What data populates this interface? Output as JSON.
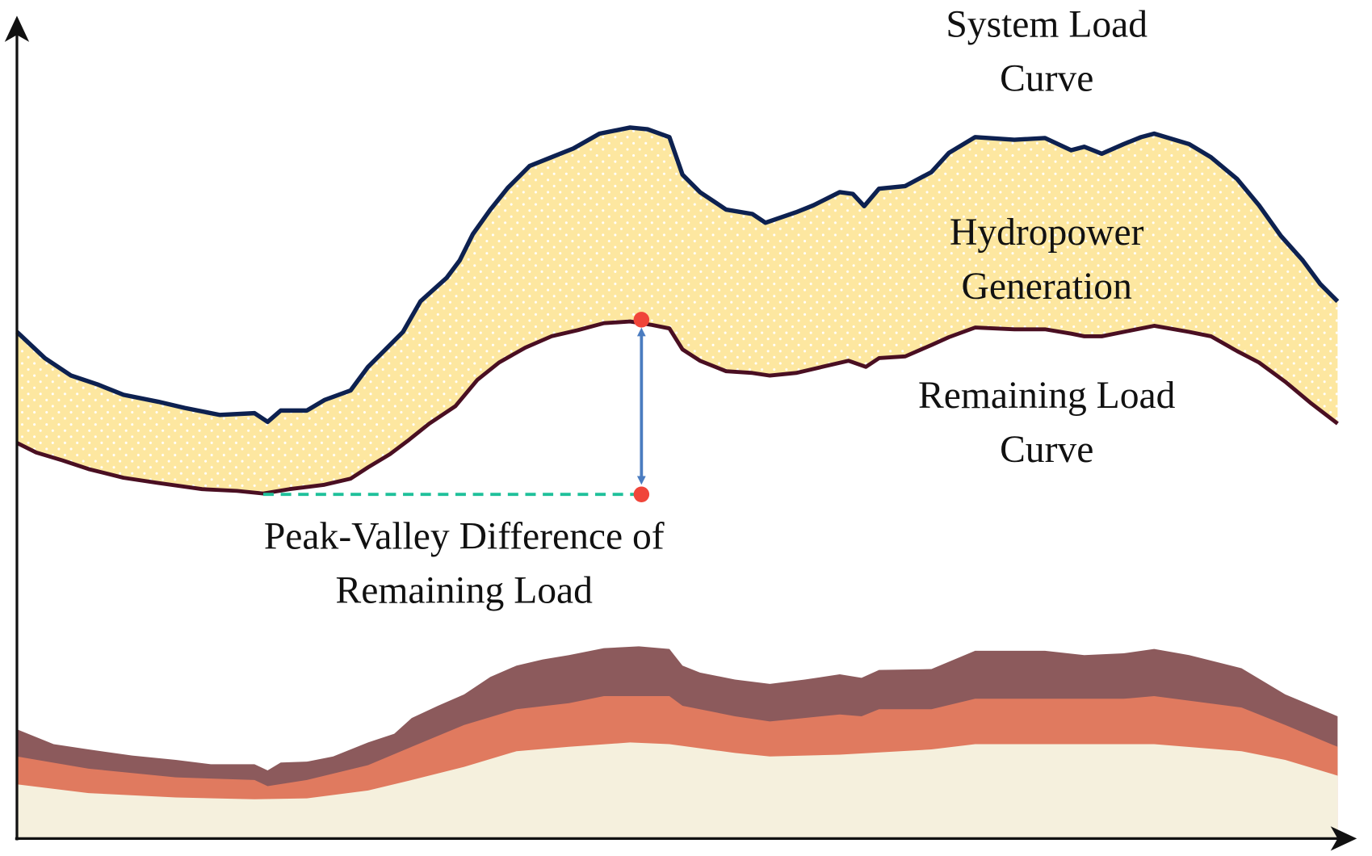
{
  "labels": {
    "system_load": [
      "System Load",
      "Curve"
    ],
    "hydropower": [
      "Hydropower",
      "Generation"
    ],
    "remaining_load": [
      "Remaining Load",
      "Curve"
    ],
    "peak_valley": [
      "Peak-Valley Difference of",
      "Remaining Load"
    ]
  }
}
